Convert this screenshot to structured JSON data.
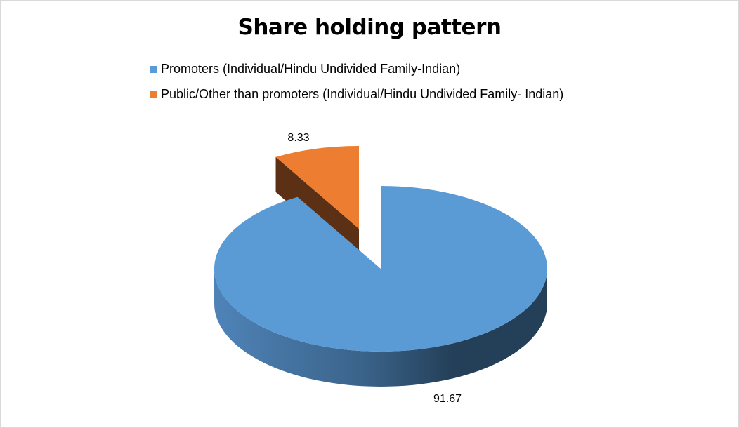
{
  "chart_data": {
    "type": "pie",
    "style": "3d-exploded",
    "title": "Share holding pattern",
    "legend_position": "top",
    "series": [
      {
        "name": "Promoters (Individual/Hindu Undivided Family-Indian)",
        "value": 91.67,
        "label": "91.67",
        "color": "#5b9bd5"
      },
      {
        "name": "Public/Other than promoters (Individual/Hindu Undivided Family- Indian)",
        "value": 8.33,
        "label": "8.33",
        "color": "#ed7d31",
        "exploded": true
      }
    ]
  }
}
